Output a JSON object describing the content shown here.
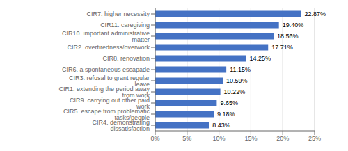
{
  "chart_data": {
    "type": "bar",
    "orientation": "horizontal",
    "categories": [
      "CIR4. demonstrating dissatisfaction",
      "CIR5. escape from problematic tasks/people",
      "CIR9. carrying out other paid work",
      "CIR1. extending the period away from work",
      "CIR3. refusal to grant regular leave",
      "CIR6. a spontaneous escapade",
      "CIR8. renovation",
      "CIR2. overtiredness/overwork",
      "CIR10. important administrative matter",
      "CIR11. caregiving",
      "CIR7. higher necessity"
    ],
    "values": [
      8.43,
      9.18,
      9.65,
      10.22,
      10.59,
      11.15,
      14.25,
      17.71,
      18.56,
      19.4,
      22.87
    ],
    "value_labels": [
      "8.43%",
      "9.18%",
      "9.65%",
      "10.22%",
      "10.59%",
      "11.15%",
      "14.25%",
      "17.71%",
      "18.56%",
      "19.40%",
      "22.87%"
    ],
    "data_labels": true,
    "color": "#4472C4",
    "xlim": [
      0,
      25
    ],
    "xticks": [
      {
        "value": 0,
        "label": "0%"
      },
      {
        "value": 5,
        "label": "5%"
      },
      {
        "value": 10,
        "label": "10%"
      },
      {
        "value": 15,
        "label": "15%"
      },
      {
        "value": 20,
        "label": "20%"
      },
      {
        "value": 25,
        "label": "25%"
      }
    ],
    "grid": true
  }
}
